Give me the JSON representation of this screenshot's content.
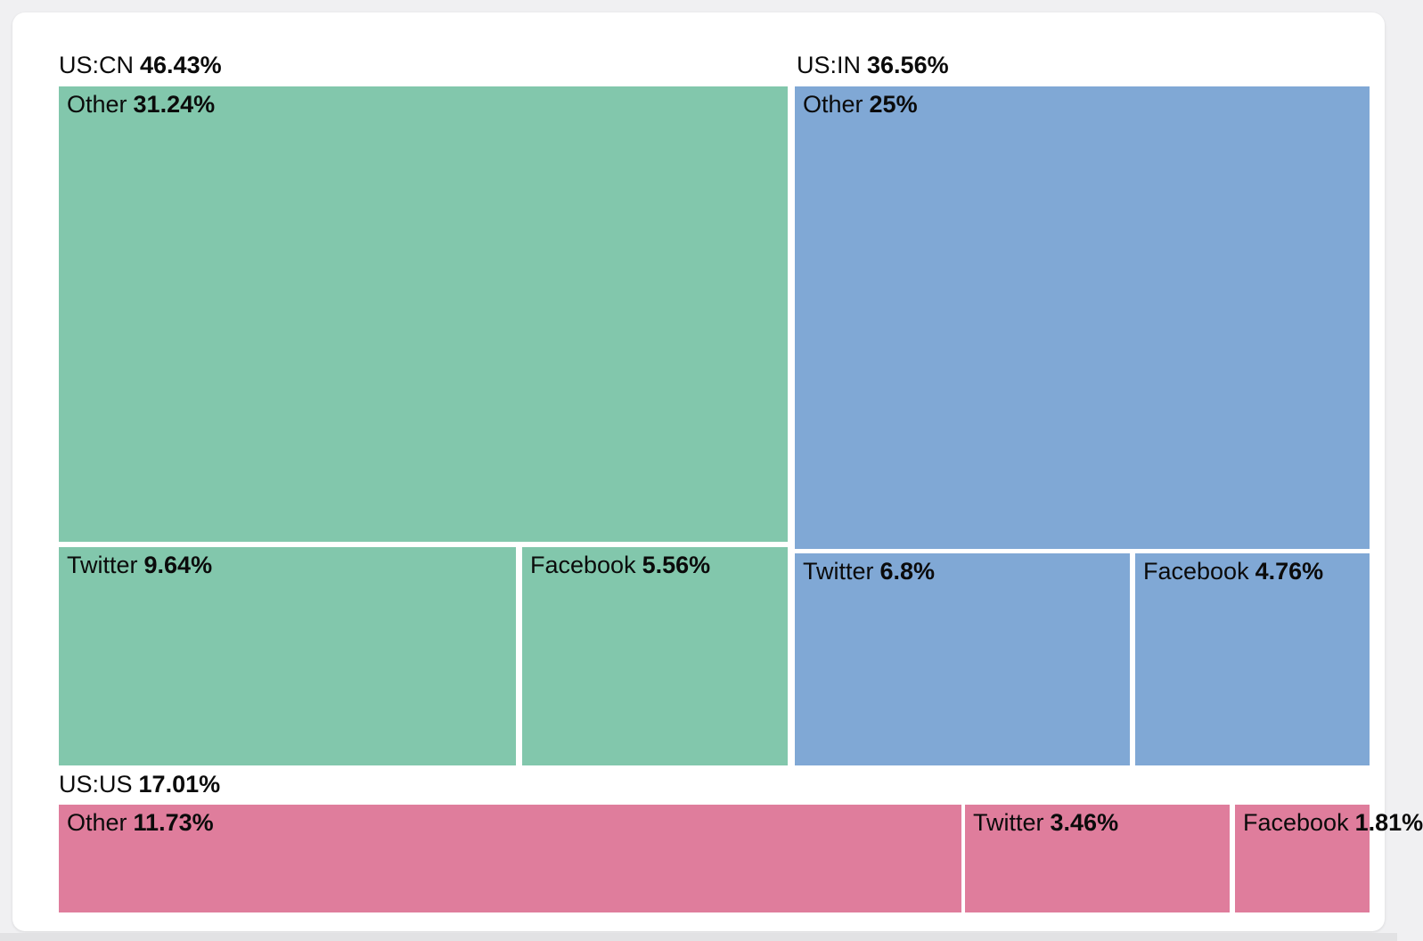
{
  "accent_colors": {
    "group_us_cn": "#82c7ac",
    "group_us_in": "#80a8d5",
    "group_us_us": "#df7d9c",
    "text": "#0b0b0b",
    "card_background": "#ffffff",
    "page_background": "#f0f0f2"
  },
  "chart_data": {
    "type": "treemap",
    "unit": "%",
    "legend_position": "none",
    "grid": false,
    "groups": [
      {
        "name": "US:CN",
        "value": 46.43,
        "value_label": "46.43%",
        "color": "#82c7ac",
        "children": [
          {
            "name": "Other",
            "value": 31.24,
            "value_label": "31.24%"
          },
          {
            "name": "Twitter",
            "value": 9.64,
            "value_label": "9.64%"
          },
          {
            "name": "Facebook",
            "value": 5.56,
            "value_label": "5.56%"
          }
        ]
      },
      {
        "name": "US:IN",
        "value": 36.56,
        "value_label": "36.56%",
        "color": "#80a8d5",
        "children": [
          {
            "name": "Other",
            "value": 25,
            "value_label": "25%"
          },
          {
            "name": "Twitter",
            "value": 6.8,
            "value_label": "6.8%"
          },
          {
            "name": "Facebook",
            "value": 4.76,
            "value_label": "4.76%"
          }
        ]
      },
      {
        "name": "US:US",
        "value": 17.01,
        "value_label": "17.01%",
        "color": "#df7d9c",
        "children": [
          {
            "name": "Other",
            "value": 11.73,
            "value_label": "11.73%"
          },
          {
            "name": "Twitter",
            "value": 3.46,
            "value_label": "3.46%"
          },
          {
            "name": "Facebook",
            "value": 1.81,
            "value_label": "1.81%"
          }
        ]
      }
    ]
  }
}
